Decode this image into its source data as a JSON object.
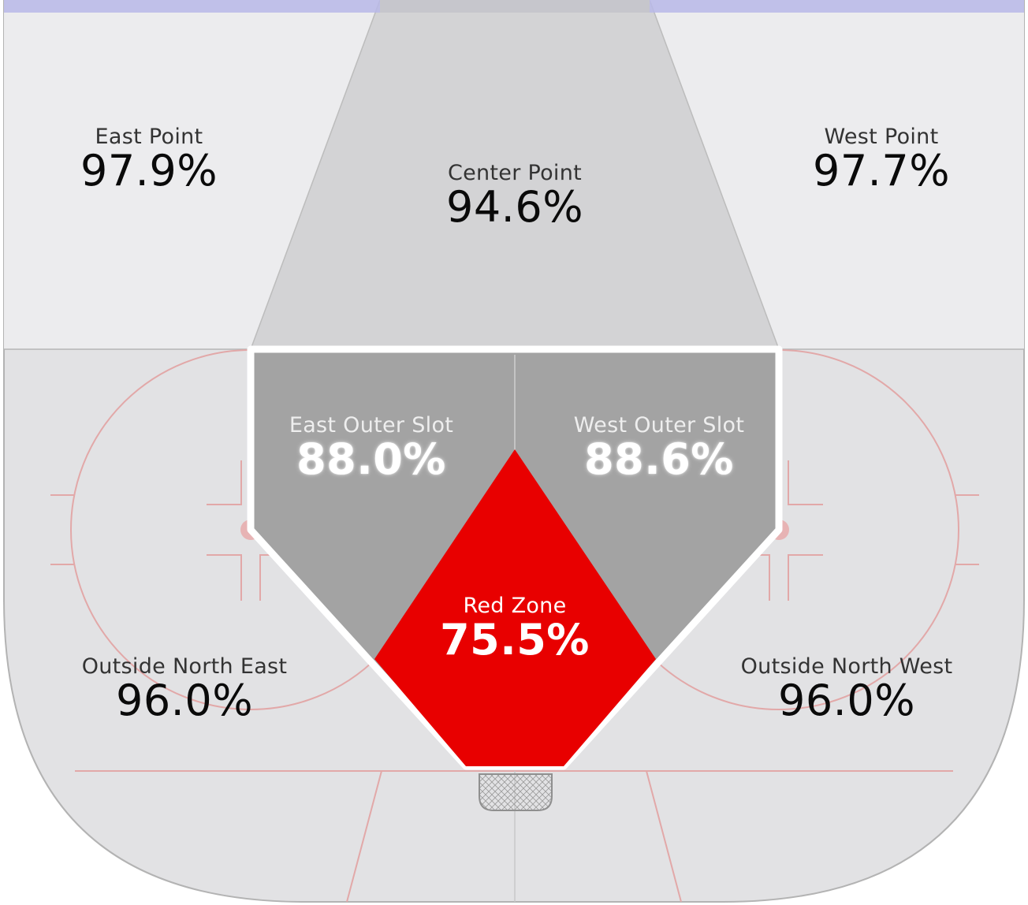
{
  "zones": {
    "east_point": {
      "name": "East Point",
      "pct": "97.9%"
    },
    "center_point": {
      "name": "Center Point",
      "pct": "94.6%"
    },
    "west_point": {
      "name": "West Point",
      "pct": "97.7%"
    },
    "east_outer_slot": {
      "name": "East Outer Slot",
      "pct": "88.0%"
    },
    "west_outer_slot": {
      "name": "West Outer Slot",
      "pct": "88.6%"
    },
    "red_zone": {
      "name": "Red Zone",
      "pct": "75.5%"
    },
    "outside_north_east": {
      "name": "Outside North East",
      "pct": "96.0%"
    },
    "outside_north_west": {
      "name": "Outside North West",
      "pct": "96.0%"
    }
  },
  "colors": {
    "point_zone": "#ececee",
    "center_zone": "#d4d4d6",
    "outside_zone": "#e2e2e4",
    "slot_zone": "#a3a3a3",
    "red_zone": "#e80000",
    "blue_line": "#b8b8e8",
    "rink_markings": "#e8a0a0"
  }
}
